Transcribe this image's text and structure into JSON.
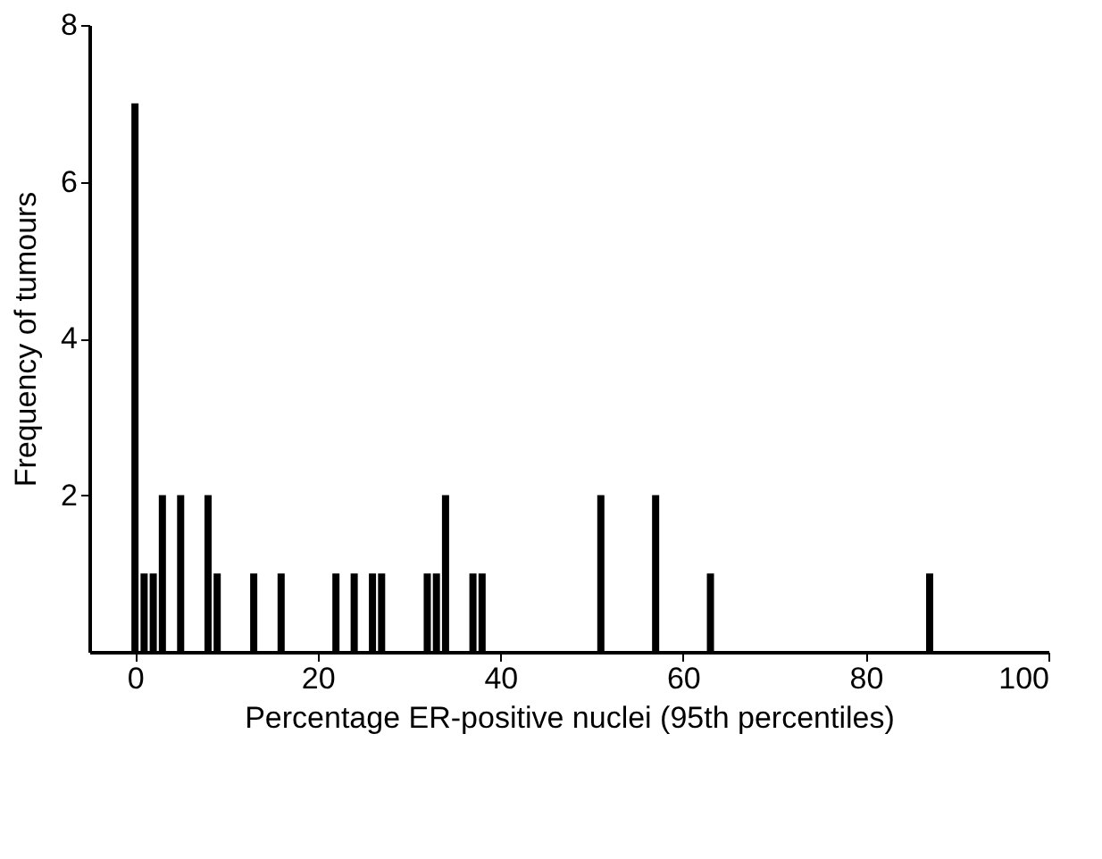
{
  "chart_data": {
    "type": "bar",
    "xlabel": "Percentage ER-positive nuclei (95th percentiles)",
    "ylabel": "Frequency of tumours",
    "x": [
      0,
      1,
      2,
      3,
      5,
      8,
      9,
      13,
      16,
      22,
      24,
      26,
      27,
      32,
      33,
      34,
      37,
      38,
      51,
      57,
      63,
      87
    ],
    "series": [
      {
        "color": "#000000",
        "values": [
          7,
          1,
          1,
          2,
          2,
          2,
          1,
          1,
          1,
          1,
          1,
          1,
          1,
          1,
          1,
          2,
          1,
          1,
          2,
          2,
          1,
          1
        ]
      }
    ],
    "xlim": [
      -5,
      100
    ],
    "ylim": [
      0,
      8
    ],
    "xticks": [
      0,
      20,
      40,
      60,
      80,
      100
    ],
    "yticks": [
      2,
      4,
      6,
      8
    ],
    "grid": false
  }
}
